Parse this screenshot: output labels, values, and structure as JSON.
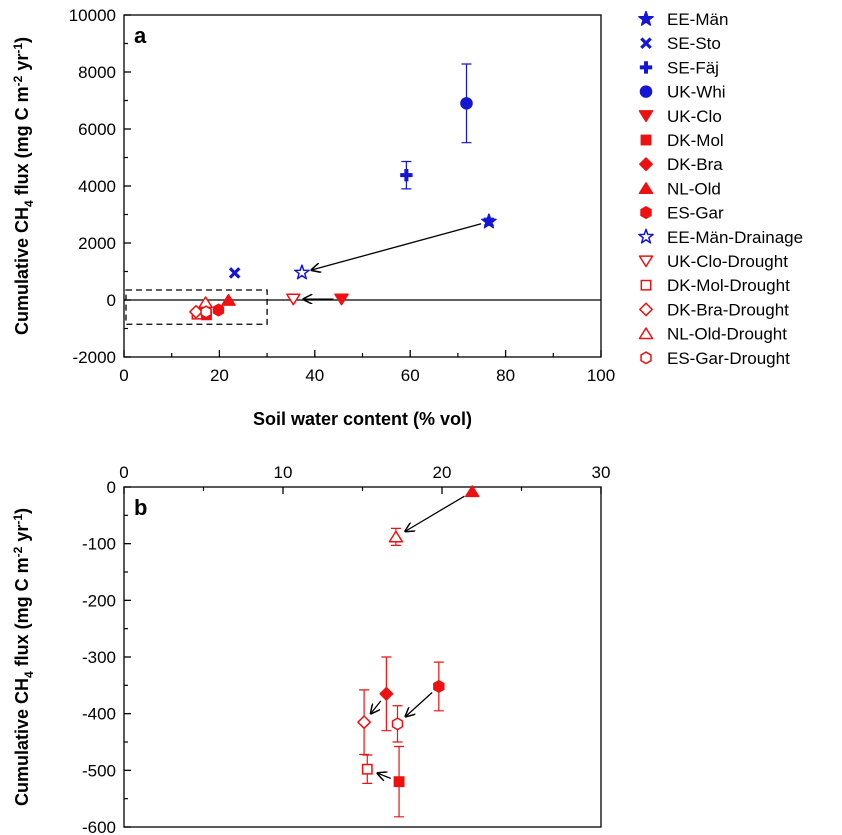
{
  "colors": {
    "blue": "#1515d4",
    "red": "#ee1111",
    "axis": "#000000"
  },
  "legend": [
    {
      "label": "EE-Män",
      "marker": "star",
      "color": "blue",
      "filled": true
    },
    {
      "label": "SE-Sto",
      "marker": "x",
      "color": "blue",
      "filled": true
    },
    {
      "label": "SE-Fäj",
      "marker": "plus",
      "color": "blue",
      "filled": true
    },
    {
      "label": "UK-Whi",
      "marker": "circle",
      "color": "blue",
      "filled": true
    },
    {
      "label": "UK-Clo",
      "marker": "triangle-down",
      "color": "red",
      "filled": true
    },
    {
      "label": "DK-Mol",
      "marker": "square",
      "color": "red",
      "filled": true
    },
    {
      "label": "DK-Bra",
      "marker": "diamond",
      "color": "red",
      "filled": true
    },
    {
      "label": "NL-Old",
      "marker": "triangle-up",
      "color": "red",
      "filled": true
    },
    {
      "label": "ES-Gar",
      "marker": "hexagon",
      "color": "red",
      "filled": true
    },
    {
      "label": "EE-Män-Drainage",
      "marker": "star",
      "color": "blue",
      "filled": false
    },
    {
      "label": "UK-Clo-Drought",
      "marker": "triangle-down",
      "color": "red",
      "filled": false
    },
    {
      "label": "DK-Mol-Drought",
      "marker": "square",
      "color": "red",
      "filled": false
    },
    {
      "label": "DK-Bra-Drought",
      "marker": "diamond",
      "color": "red",
      "filled": false
    },
    {
      "label": "NL-Old-Drought",
      "marker": "triangle-up",
      "color": "red",
      "filled": false
    },
    {
      "label": "ES-Gar-Drought",
      "marker": "hexagon",
      "color": "red",
      "filled": false
    }
  ],
  "chart_data": [
    {
      "type": "scatter",
      "panel_label": "a",
      "xlabel": "Soil water content (% vol)",
      "ylabel_main": "Cumulative CH",
      "ylabel_sub": "4",
      "ylabel_rest": " flux (mg C m",
      "ylabel_sup1": "-2",
      "ylabel_mid": " yr",
      "ylabel_sup2": "-1",
      "ylabel_end": ")",
      "xlim": [
        0,
        100
      ],
      "ylim": [
        -2000,
        10000
      ],
      "xticks": [
        0,
        20,
        40,
        60,
        80,
        100
      ],
      "yticks": [
        -2000,
        0,
        2000,
        4000,
        6000,
        8000,
        10000
      ],
      "xtick_labels": [
        "0",
        "20",
        "40",
        "60",
        "80",
        "100"
      ],
      "ytick_labels": [
        "-2000",
        "0",
        "2000",
        "4000",
        "6000",
        "8000",
        "10000"
      ],
      "zero_line": true,
      "points": [
        {
          "site": "EE-Män",
          "x": 76.5,
          "y": 2750,
          "err": 120
        },
        {
          "site": "SE-Sto",
          "x": 23.2,
          "y": 950,
          "err": 0
        },
        {
          "site": "SE-Fäj",
          "x": 59.2,
          "y": 4380,
          "err": 480
        },
        {
          "site": "UK-Whi",
          "x": 71.8,
          "y": 6900,
          "err": 1380
        },
        {
          "site": "UK-Clo",
          "x": 45.6,
          "y": 30,
          "err": 0
        },
        {
          "site": "DK-Mol",
          "x": 17.3,
          "y": -520,
          "err": 0
        },
        {
          "site": "DK-Bra",
          "x": 16.5,
          "y": -365,
          "err": 0
        },
        {
          "site": "NL-Old",
          "x": 21.9,
          "y": -8,
          "err": 0
        },
        {
          "site": "ES-Gar",
          "x": 19.8,
          "y": -352,
          "err": 0
        },
        {
          "site": "EE-Män-Drainage",
          "x": 37.3,
          "y": 960,
          "err": 0
        },
        {
          "site": "UK-Clo-Drought",
          "x": 35.5,
          "y": 30,
          "err": 0
        },
        {
          "site": "DK-Mol-Drought",
          "x": 15.3,
          "y": -498,
          "err": 0
        },
        {
          "site": "DK-Bra-Drought",
          "x": 15.1,
          "y": -415,
          "err": 0
        },
        {
          "site": "NL-Old-Drought",
          "x": 17.1,
          "y": -88,
          "err": 0
        },
        {
          "site": "ES-Gar-Drought",
          "x": 17.2,
          "y": -418,
          "err": 0
        }
      ],
      "arrows": [
        {
          "from": [
            76.5,
            2750
          ],
          "to": [
            37.3,
            960
          ]
        },
        {
          "from": [
            45.6,
            30
          ],
          "to": [
            35.5,
            30
          ]
        }
      ],
      "highlight_box": {
        "x": [
          0,
          30
        ],
        "y": [
          -850,
          350
        ]
      }
    },
    {
      "type": "scatter",
      "panel_label": "b",
      "ylabel_main": "Cumulative CH",
      "ylabel_sub": "4",
      "ylabel_rest": " flux (mg C m",
      "ylabel_sup1": "-2",
      "ylabel_mid": " yr",
      "ylabel_sup2": "-1",
      "ylabel_end": ")",
      "xlim": [
        0,
        30
      ],
      "ylim": [
        -600,
        0
      ],
      "xticks": [
        0,
        10,
        20,
        30
      ],
      "yticks": [
        -600,
        -500,
        -400,
        -300,
        -200,
        -100,
        0
      ],
      "xtick_labels": [
        "0",
        "10",
        "20",
        "30"
      ],
      "ytick_labels": [
        "-600",
        "-500",
        "-400",
        "-300",
        "-200",
        "-100",
        "0"
      ],
      "x_axis_on_top": true,
      "points": [
        {
          "site": "NL-Old",
          "x": 21.9,
          "y": -8,
          "err": 0
        },
        {
          "site": "NL-Old-Drought",
          "x": 17.1,
          "y": -88,
          "err": 15
        },
        {
          "site": "DK-Bra",
          "x": 16.5,
          "y": -365,
          "err": 65
        },
        {
          "site": "DK-Bra-Drought",
          "x": 15.1,
          "y": -415,
          "err": 57
        },
        {
          "site": "ES-Gar",
          "x": 19.8,
          "y": -352,
          "err": 43
        },
        {
          "site": "ES-Gar-Drought",
          "x": 17.2,
          "y": -418,
          "err": 32
        },
        {
          "site": "DK-Mol",
          "x": 17.3,
          "y": -520,
          "err": 62
        },
        {
          "site": "DK-Mol-Drought",
          "x": 15.3,
          "y": -498,
          "err": 25
        }
      ],
      "arrows": [
        {
          "from": [
            21.9,
            -8
          ],
          "to": [
            17.1,
            -88
          ]
        },
        {
          "from": [
            16.5,
            -365
          ],
          "to": [
            15.1,
            -415
          ]
        },
        {
          "from": [
            19.8,
            -352
          ],
          "to": [
            17.2,
            -418
          ]
        },
        {
          "from": [
            17.3,
            -520
          ],
          "to": [
            15.3,
            -498
          ]
        }
      ]
    }
  ]
}
